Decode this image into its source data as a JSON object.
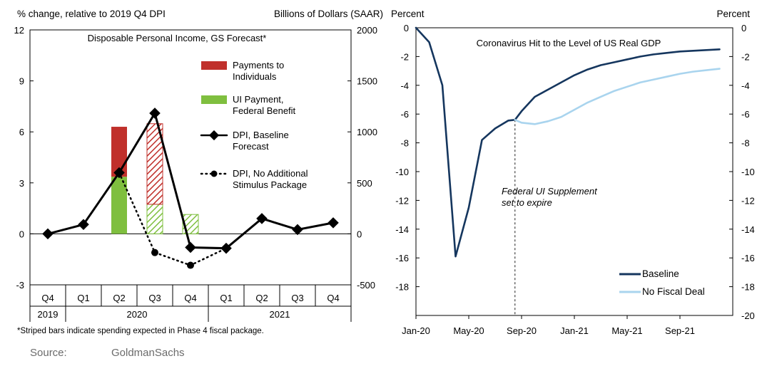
{
  "source": {
    "label": "Source:",
    "value": "GoldmanSachs"
  },
  "chart_data": [
    {
      "type": "bar",
      "title": "Disposable Personal Income, GS Forecast*",
      "ylabel_left": "% change, relative to 2019 Q4 DPI",
      "ylabel_right": "Billions of Dollars (SAAR)",
      "ylim_left": [
        -3,
        12
      ],
      "yticks_left": [
        -3,
        0,
        3,
        6,
        9,
        12
      ],
      "ylim_right": [
        -500,
        2000
      ],
      "yticks_right": [
        -500,
        0,
        500,
        1000,
        1500,
        2000
      ],
      "categories": [
        "Q4",
        "Q1",
        "Q2",
        "Q3",
        "Q4",
        "Q1",
        "Q2",
        "Q3",
        "Q4"
      ],
      "year_groups": [
        {
          "label": "2019",
          "span": 1
        },
        {
          "label": "2020",
          "span": 4
        },
        {
          "label": "2021",
          "span": 4
        }
      ],
      "footnote": "*Striped bars indicate spending expected in Phase 4 fiscal package.",
      "series": [
        {
          "name": "Payments to Individuals",
          "kind": "bar",
          "axis": "right",
          "color": "#c0302b",
          "values": [
            0,
            0,
            1050,
            1080,
            0,
            0,
            0,
            0,
            0
          ],
          "striped": [
            false,
            false,
            false,
            true,
            false,
            false,
            false,
            false,
            false
          ]
        },
        {
          "name": "UI Payment, Federal Benefit",
          "kind": "bar",
          "axis": "right",
          "color": "#7fbf3f",
          "values": [
            0,
            0,
            560,
            290,
            190,
            0,
            0,
            0,
            0
          ],
          "striped": [
            false,
            false,
            false,
            true,
            true,
            false,
            false,
            false,
            false
          ]
        },
        {
          "name": "DPI, Baseline Forecast",
          "kind": "line",
          "style": "solid",
          "axis": "left",
          "color": "#000000",
          "values": [
            0.0,
            0.55,
            3.6,
            7.1,
            -0.8,
            -0.85,
            0.9,
            0.25,
            0.65
          ]
        },
        {
          "name": "DPI, No Additional Stimulus Package",
          "kind": "line",
          "style": "dotted",
          "axis": "left",
          "color": "#000000",
          "values": [
            null,
            null,
            3.6,
            -1.1,
            -1.85,
            -0.85,
            null,
            null,
            null
          ]
        }
      ]
    },
    {
      "type": "line",
      "title": "Coronavirus  Hit to the Level of US Real GDP",
      "ylabel_left": "Percent",
      "ylabel_right": "Percent",
      "ylim": [
        -20,
        0
      ],
      "yticks_left": [
        -18,
        -16,
        -14,
        -12,
        -10,
        -8,
        -6,
        -4,
        -2,
        0
      ],
      "yticks_right": [
        -20,
        -18,
        -16,
        -14,
        -12,
        -10,
        -8,
        -6,
        -4,
        -2,
        0
      ],
      "xlabels": [
        "Jan-20",
        "May-20",
        "Sep-20",
        "Jan-21",
        "May-21",
        "Sep-21"
      ],
      "x_tick_months": [
        0,
        4,
        8,
        12,
        16,
        20
      ],
      "x_range_months": [
        0,
        24
      ],
      "annotation": {
        "text_lines": [
          "Federal UI Supplement",
          "set to expire"
        ],
        "x_month": 7.5
      },
      "series": [
        {
          "name": "Baseline",
          "color": "#15365e",
          "x": [
            0,
            1,
            2,
            3,
            4,
            5,
            6,
            7,
            7.5,
            8,
            9,
            10,
            11,
            12,
            13,
            14,
            15,
            16,
            17,
            18,
            19,
            20,
            21,
            22,
            23
          ],
          "values": [
            0,
            -1,
            -4,
            -15.9,
            -12.5,
            -7.8,
            -7.0,
            -6.45,
            -6.4,
            -5.8,
            -4.8,
            -4.3,
            -3.8,
            -3.3,
            -2.9,
            -2.6,
            -2.4,
            -2.2,
            -2.0,
            -1.85,
            -1.75,
            -1.65,
            -1.6,
            -1.55,
            -1.5
          ]
        },
        {
          "name": "No Fiscal Deal",
          "color": "#a9d4ee",
          "x": [
            7.5,
            8,
            9,
            10,
            11,
            12,
            13,
            14,
            15,
            16,
            17,
            18,
            19,
            20,
            21,
            22,
            23
          ],
          "values": [
            -6.4,
            -6.6,
            -6.7,
            -6.5,
            -6.2,
            -5.7,
            -5.2,
            -4.8,
            -4.4,
            -4.1,
            -3.8,
            -3.6,
            -3.4,
            -3.2,
            -3.05,
            -2.95,
            -2.85
          ]
        }
      ]
    }
  ]
}
